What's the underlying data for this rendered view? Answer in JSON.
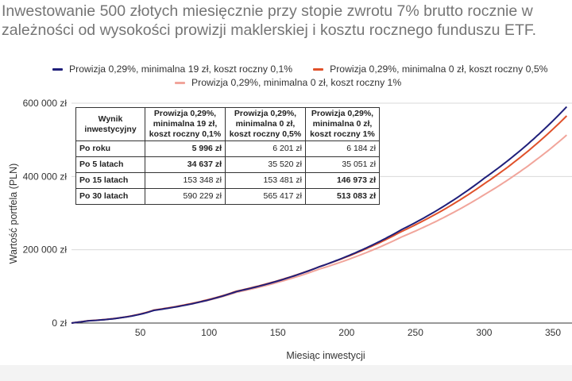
{
  "title": {
    "line1": "Inwestowanie 500 złotych miesięcznie przy stopie zwrotu 7% brutto rocznie w",
    "line2": "zależności od wysokości prowizji maklerskiej i kosztu rocznego funduszu ETF."
  },
  "colors": {
    "series1": "#1f1f7a",
    "series2": "#e0512a",
    "series3": "#f1a59b",
    "grid": "#d9d9d9",
    "axis": "#333333"
  },
  "chart_data": {
    "type": "line",
    "title": "Inwestowanie 500 złotych miesięcznie przy stopie zwrotu 7% brutto rocznie w zależności od wysokości prowizji maklerskiej i kosztu rocznego funduszu ETF.",
    "xlabel": "Miesiąc inwestycji",
    "ylabel": "Wartość portfela (PLN)",
    "xlim": [
      0,
      360
    ],
    "ylim": [
      0,
      600000
    ],
    "x_ticks": [
      50,
      100,
      150,
      200,
      250,
      300,
      350
    ],
    "y_ticks": [
      {
        "value": 0,
        "label": "0 zł"
      },
      {
        "value": 200000,
        "label": "200 000 zł"
      },
      {
        "value": 400000,
        "label": "400 000 zł"
      },
      {
        "value": 600000,
        "label": "600 000 zł"
      }
    ],
    "grid": "horizontal",
    "legend_position": "top",
    "series": [
      {
        "name": "Prowizja 0,29%, minimalna 19 zł, koszt roczny 0,1%",
        "color": "#1f1f7a",
        "x": [
          0,
          12,
          60,
          120,
          180,
          240,
          300,
          360
        ],
        "values": [
          0,
          5996,
          34637,
          86000,
          153348,
          255000,
          395000,
          590229
        ]
      },
      {
        "name": "Prowizja 0,29%, minimalna 0 zł, koszt roczny 0,5%",
        "color": "#e0512a",
        "x": [
          0,
          12,
          60,
          120,
          180,
          240,
          300,
          360
        ],
        "values": [
          0,
          6201,
          35520,
          87000,
          153481,
          250000,
          380000,
          565417
        ]
      },
      {
        "name": "Prowizja 0,29%, minimalna 0 zł, koszt roczny 1%",
        "color": "#f1a59b",
        "x": [
          0,
          12,
          60,
          120,
          180,
          240,
          300,
          360
        ],
        "values": [
          0,
          6184,
          35051,
          84000,
          146973,
          235000,
          350000,
          513083
        ]
      }
    ]
  },
  "table": {
    "headers": [
      "Wynik inwestycyjny",
      "Prowizja 0,29%, minimalna 19 zł, koszt roczny 0,1%",
      "Prowizja 0,29%, minimalna 0 zł, koszt roczny 0,5%",
      "Prowizja 0,29%, minimalna 0 zł, koszt roczny 1%"
    ],
    "rows": [
      {
        "label": "Po roku",
        "values": [
          "5 996 zł",
          "6 201 zł",
          "6 184 zł"
        ],
        "bold": 0
      },
      {
        "label": "Po 5 latach",
        "values": [
          "34 637 zł",
          "35 520 zł",
          "35 051 zł"
        ],
        "bold": 0
      },
      {
        "label": "Po 15 latach",
        "values": [
          "153 348 zł",
          "153 481 zł",
          "146 973 zł"
        ],
        "bold": 2
      },
      {
        "label": "Po 30 latach",
        "values": [
          "590 229 zł",
          "565 417 zł",
          "513 083 zł"
        ],
        "bold": 2
      }
    ]
  }
}
